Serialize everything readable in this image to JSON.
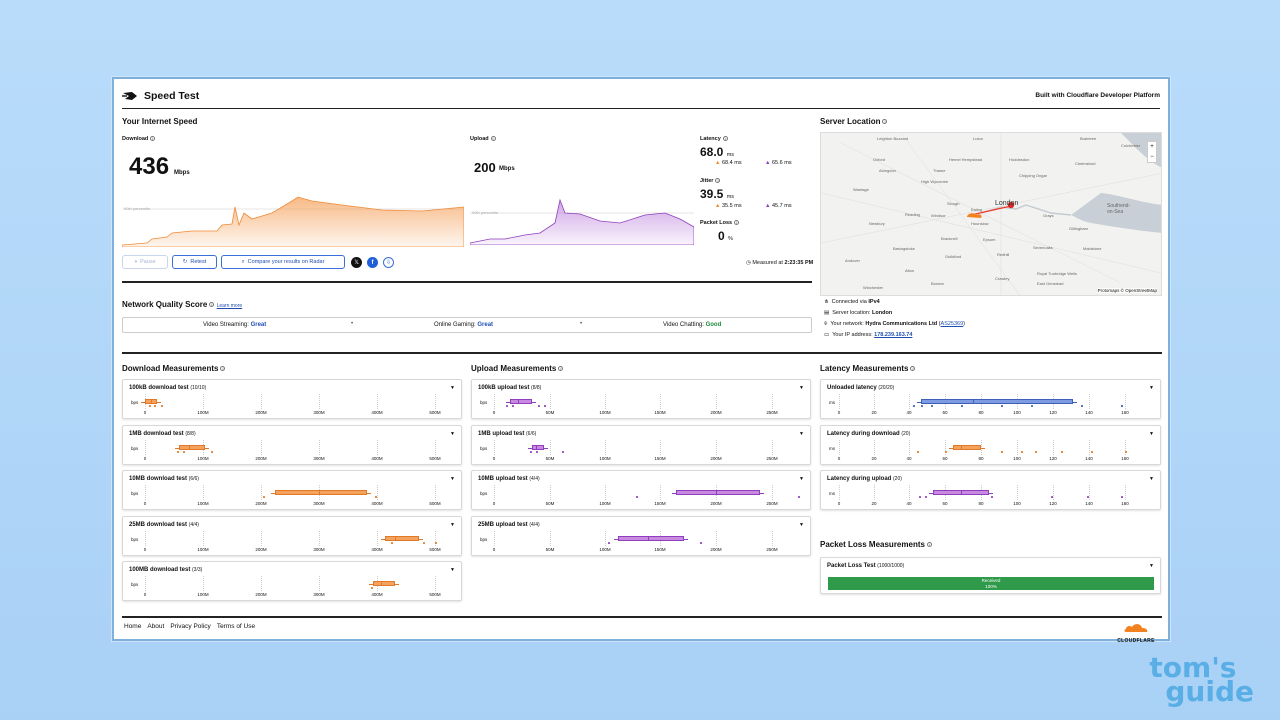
{
  "app": {
    "title": "Speed Test",
    "built_with": "Built with Cloudflare Developer Platform"
  },
  "speed": {
    "section_title": "Your Internet Speed",
    "download_label": "Download",
    "download_value": "436",
    "download_unit": "Mbps",
    "upload_label": "Upload",
    "upload_value": "200",
    "upload_unit": "Mbps",
    "percentile_label": "90th percentile",
    "latency_label": "Latency",
    "latency_value": "68.0",
    "latency_unit": "ms",
    "latency_down": "68.4",
    "latency_up": "65.6",
    "jitter_label": "Jitter",
    "jitter_value": "39.5",
    "jitter_down": "35.5",
    "jitter_up": "45.7",
    "loss_label": "Packet Loss",
    "loss_value": "0",
    "loss_unit": "%",
    "ms": "ms",
    "measured": "Measured at",
    "measured_time": "2:23:35 PM"
  },
  "buttons": {
    "pause": "Pause",
    "retest": "Retest",
    "compare": "Compare your results on Radar"
  },
  "network_quality": {
    "title": "Network Quality Score",
    "learn_more": "Learn more",
    "items": [
      {
        "label": "Video Streaming:",
        "value": "Great",
        "color": "#1f4fb3"
      },
      {
        "label": "Online Gaming:",
        "value": "Great",
        "color": "#1f4fb3"
      },
      {
        "label": "Video Chatting:",
        "value": "Good",
        "color": "#1c8a3a"
      }
    ]
  },
  "server": {
    "title": "Server Location",
    "connected_via_label": "Connected via",
    "connected_via": "IPv4",
    "location_label": "Server location:",
    "location": "London",
    "network_label": "Your network:",
    "network": "Hydra Communications Ltd",
    "asn": "AS25369",
    "ip_label": "Your IP address:",
    "ip": "178.239.163.74",
    "map_credit": "Protomaps © OpenStreetMap",
    "places": [
      "Leighton Buzzard",
      "Luton",
      "Braintree",
      "Colchester",
      "Oxford",
      "Hemel Hempstead",
      "Hoddesdon",
      "Chelmsford",
      "Abingdon",
      "Thame",
      "High Wycombe",
      "Chipping Ongar",
      "Wantage",
      "Slough",
      "London",
      "Southend-on-Sea",
      "Newbury",
      "Reading",
      "Windsor",
      "Ealing",
      "Grays",
      "Basingstoke",
      "Bracknell",
      "Hounslow",
      "Epsom",
      "Gillingham",
      "Maidstone",
      "Andover",
      "Guildford",
      "Redhill",
      "Sevenoaks",
      "Winchester",
      "Alton",
      "Crawley",
      "Royal Tunbridge Wells",
      "Bordon",
      "East Grinstead"
    ]
  },
  "download": {
    "title": "Download Measurements",
    "unit": "bps",
    "ticks": [
      "0",
      "100M",
      "200M",
      "300M",
      "400M",
      "500M"
    ],
    "tests": [
      {
        "name": "100kB download test",
        "count": "(10/10)"
      },
      {
        "name": "1MB download test",
        "count": "(8/8)"
      },
      {
        "name": "10MB download test",
        "count": "(6/6)"
      },
      {
        "name": "25MB download test",
        "count": "(4/4)"
      },
      {
        "name": "100MB download test",
        "count": "(3/3)"
      }
    ]
  },
  "upload": {
    "title": "Upload Measurements",
    "unit": "bps",
    "ticks": [
      "0",
      "50M",
      "100M",
      "150M",
      "200M",
      "250M"
    ],
    "tests": [
      {
        "name": "100kB upload test",
        "count": "(8/8)"
      },
      {
        "name": "1MB upload test",
        "count": "(6/6)"
      },
      {
        "name": "10MB upload test",
        "count": "(4/4)"
      },
      {
        "name": "25MB upload test",
        "count": "(4/4)"
      }
    ]
  },
  "latency": {
    "title": "Latency Measurements",
    "unit": "ms",
    "ticks": [
      "0",
      "20",
      "40",
      "60",
      "80",
      "100",
      "120",
      "140",
      "160"
    ],
    "tests": [
      {
        "name": "Unloaded latency",
        "count": "(20/20)"
      },
      {
        "name": "Latency during download",
        "count": "(20)"
      },
      {
        "name": "Latency during upload",
        "count": "(20)"
      }
    ]
  },
  "packet_loss": {
    "title": "Packet Loss Measurements",
    "test_name": "Packet Loss Test",
    "count": "(1000/1000)",
    "bar_label": "Received",
    "bar_value": "100%"
  },
  "footer": {
    "links": [
      "Home",
      "About",
      "Privacy Policy",
      "Terms of Use"
    ],
    "brand": "CLOUDFLARE"
  },
  "watermark": {
    "line1": "tom's",
    "line2": "guide"
  },
  "colors": {
    "download": "#f5a25d",
    "upload": "#b26bd6",
    "latency": "#7d9be0",
    "received": "#2e9a4a"
  }
}
